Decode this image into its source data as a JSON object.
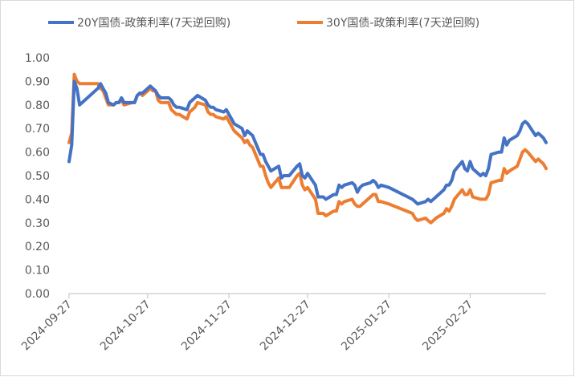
{
  "chart_data": {
    "type": "line",
    "title": "",
    "xlabel": "",
    "ylabel": "",
    "ylim": [
      0,
      1.0
    ],
    "yticks": [
      "0.00",
      "0.10",
      "0.20",
      "0.30",
      "0.40",
      "0.50",
      "0.60",
      "0.70",
      "0.80",
      "0.90",
      "1.00"
    ],
    "xticks": [
      "2024-09-27",
      "2024-10-27",
      "2024-11-27",
      "2024-12-27",
      "2025-01-27",
      "2025-02-27"
    ],
    "grid": false,
    "legend_position": "top",
    "series": [
      {
        "name": "20Y国债-政策利率(7天逆回购)",
        "color": "#4472C4",
        "points": [
          [
            "2024-09-27",
            0.56
          ],
          [
            "2024-09-28",
            0.63
          ],
          [
            "2024-09-29",
            0.9
          ],
          [
            "2024-09-30",
            0.87
          ],
          [
            "2024-10-01",
            0.8
          ],
          [
            "2024-10-08",
            0.87
          ],
          [
            "2024-10-09",
            0.89
          ],
          [
            "2024-10-10",
            0.87
          ],
          [
            "2024-10-11",
            0.85
          ],
          [
            "2024-10-12",
            0.81
          ],
          [
            "2024-10-14",
            0.8
          ],
          [
            "2024-10-15",
            0.81
          ],
          [
            "2024-10-16",
            0.81
          ],
          [
            "2024-10-17",
            0.83
          ],
          [
            "2024-10-18",
            0.81
          ],
          [
            "2024-10-21",
            0.81
          ],
          [
            "2024-10-22",
            0.81
          ],
          [
            "2024-10-23",
            0.84
          ],
          [
            "2024-10-24",
            0.85
          ],
          [
            "2024-10-25",
            0.85
          ],
          [
            "2024-10-28",
            0.88
          ],
          [
            "2024-10-29",
            0.87
          ],
          [
            "2024-10-30",
            0.86
          ],
          [
            "2024-10-31",
            0.84
          ],
          [
            "2024-11-01",
            0.83
          ],
          [
            "2024-11-04",
            0.83
          ],
          [
            "2024-11-05",
            0.82
          ],
          [
            "2024-11-06",
            0.8
          ],
          [
            "2024-11-07",
            0.79
          ],
          [
            "2024-11-08",
            0.79
          ],
          [
            "2024-11-11",
            0.78
          ],
          [
            "2024-11-12",
            0.81
          ],
          [
            "2024-11-13",
            0.82
          ],
          [
            "2024-11-14",
            0.83
          ],
          [
            "2024-11-15",
            0.84
          ],
          [
            "2024-11-18",
            0.82
          ],
          [
            "2024-11-19",
            0.8
          ],
          [
            "2024-11-20",
            0.79
          ],
          [
            "2024-11-21",
            0.79
          ],
          [
            "2024-11-22",
            0.78
          ],
          [
            "2024-11-25",
            0.77
          ],
          [
            "2024-11-26",
            0.78
          ],
          [
            "2024-11-27",
            0.76
          ],
          [
            "2024-11-28",
            0.74
          ],
          [
            "2024-11-29",
            0.72
          ],
          [
            "2024-12-02",
            0.7
          ],
          [
            "2024-12-03",
            0.67
          ],
          [
            "2024-12-04",
            0.69
          ],
          [
            "2024-12-05",
            0.68
          ],
          [
            "2024-12-06",
            0.67
          ],
          [
            "2024-12-09",
            0.59
          ],
          [
            "2024-12-10",
            0.59
          ],
          [
            "2024-12-11",
            0.56
          ],
          [
            "2024-12-12",
            0.54
          ],
          [
            "2024-12-13",
            0.52
          ],
          [
            "2024-12-16",
            0.54
          ],
          [
            "2024-12-17",
            0.49
          ],
          [
            "2024-12-18",
            0.5
          ],
          [
            "2024-12-19",
            0.5
          ],
          [
            "2024-12-20",
            0.5
          ],
          [
            "2024-12-23",
            0.54
          ],
          [
            "2024-12-24",
            0.55
          ],
          [
            "2024-12-25",
            0.5
          ],
          [
            "2024-12-26",
            0.49
          ],
          [
            "2024-12-27",
            0.51
          ],
          [
            "2024-12-30",
            0.46
          ],
          [
            "2024-12-31",
            0.41
          ],
          [
            "2025-01-02",
            0.41
          ],
          [
            "2025-01-03",
            0.4
          ],
          [
            "2025-01-06",
            0.42
          ],
          [
            "2025-01-07",
            0.42
          ],
          [
            "2025-01-08",
            0.46
          ],
          [
            "2025-01-09",
            0.45
          ],
          [
            "2025-01-10",
            0.46
          ],
          [
            "2025-01-13",
            0.47
          ],
          [
            "2025-01-14",
            0.46
          ],
          [
            "2025-01-15",
            0.43
          ],
          [
            "2025-01-16",
            0.45
          ],
          [
            "2025-01-17",
            0.46
          ],
          [
            "2025-01-20",
            0.47
          ],
          [
            "2025-01-21",
            0.48
          ],
          [
            "2025-01-22",
            0.47
          ],
          [
            "2025-01-23",
            0.45
          ],
          [
            "2025-01-24",
            0.46
          ],
          [
            "2025-01-27",
            0.45
          ],
          [
            "2025-02-05",
            0.4
          ],
          [
            "2025-02-06",
            0.39
          ],
          [
            "2025-02-07",
            0.38
          ],
          [
            "2025-02-10",
            0.39
          ],
          [
            "2025-02-11",
            0.4
          ],
          [
            "2025-02-12",
            0.39
          ],
          [
            "2025-02-13",
            0.4
          ],
          [
            "2025-02-14",
            0.41
          ],
          [
            "2025-02-17",
            0.44
          ],
          [
            "2025-02-18",
            0.46
          ],
          [
            "2025-02-19",
            0.46
          ],
          [
            "2025-02-20",
            0.48
          ],
          [
            "2025-02-21",
            0.52
          ],
          [
            "2025-02-24",
            0.56
          ],
          [
            "2025-02-25",
            0.53
          ],
          [
            "2025-02-26",
            0.52
          ],
          [
            "2025-02-27",
            0.56
          ],
          [
            "2025-02-28",
            0.53
          ],
          [
            "2025-03-03",
            0.5
          ],
          [
            "2025-03-04",
            0.51
          ],
          [
            "2025-03-05",
            0.5
          ],
          [
            "2025-03-06",
            0.53
          ],
          [
            "2025-03-07",
            0.59
          ],
          [
            "2025-03-10",
            0.6
          ],
          [
            "2025-03-11",
            0.6
          ],
          [
            "2025-03-12",
            0.66
          ],
          [
            "2025-03-13",
            0.63
          ],
          [
            "2025-03-14",
            0.65
          ],
          [
            "2025-03-17",
            0.67
          ],
          [
            "2025-03-18",
            0.69
          ],
          [
            "2025-03-19",
            0.72
          ],
          [
            "2025-03-20",
            0.73
          ],
          [
            "2025-03-21",
            0.72
          ],
          [
            "2025-03-24",
            0.67
          ],
          [
            "2025-03-25",
            0.68
          ],
          [
            "2025-03-26",
            0.67
          ],
          [
            "2025-03-27",
            0.66
          ],
          [
            "2025-03-28",
            0.64
          ]
        ]
      },
      {
        "name": "30Y国债-政策利率(7天逆回购)",
        "color": "#ED7D31",
        "points": [
          [
            "2024-09-27",
            0.64
          ],
          [
            "2024-09-28",
            0.68
          ],
          [
            "2024-09-29",
            0.93
          ],
          [
            "2024-09-30",
            0.9
          ],
          [
            "2024-10-01",
            0.89
          ],
          [
            "2024-10-08",
            0.89
          ],
          [
            "2024-10-09",
            0.87
          ],
          [
            "2024-10-10",
            0.86
          ],
          [
            "2024-10-11",
            0.83
          ],
          [
            "2024-10-12",
            0.8
          ],
          [
            "2024-10-14",
            0.8
          ],
          [
            "2024-10-15",
            0.81
          ],
          [
            "2024-10-16",
            0.81
          ],
          [
            "2024-10-17",
            0.82
          ],
          [
            "2024-10-18",
            0.8
          ],
          [
            "2024-10-21",
            0.81
          ],
          [
            "2024-10-22",
            0.81
          ],
          [
            "2024-10-23",
            0.84
          ],
          [
            "2024-10-24",
            0.85
          ],
          [
            "2024-10-25",
            0.84
          ],
          [
            "2024-10-28",
            0.87
          ],
          [
            "2024-10-29",
            0.86
          ],
          [
            "2024-10-30",
            0.86
          ],
          [
            "2024-10-31",
            0.82
          ],
          [
            "2024-11-01",
            0.81
          ],
          [
            "2024-11-04",
            0.81
          ],
          [
            "2024-11-05",
            0.78
          ],
          [
            "2024-11-06",
            0.77
          ],
          [
            "2024-11-07",
            0.76
          ],
          [
            "2024-11-08",
            0.76
          ],
          [
            "2024-11-11",
            0.74
          ],
          [
            "2024-11-12",
            0.77
          ],
          [
            "2024-11-13",
            0.78
          ],
          [
            "2024-11-14",
            0.79
          ],
          [
            "2024-11-15",
            0.81
          ],
          [
            "2024-11-18",
            0.8
          ],
          [
            "2024-11-19",
            0.77
          ],
          [
            "2024-11-20",
            0.76
          ],
          [
            "2024-11-21",
            0.76
          ],
          [
            "2024-11-22",
            0.75
          ],
          [
            "2024-11-25",
            0.74
          ],
          [
            "2024-11-26",
            0.75
          ],
          [
            "2024-11-27",
            0.73
          ],
          [
            "2024-11-28",
            0.71
          ],
          [
            "2024-11-29",
            0.69
          ],
          [
            "2024-12-02",
            0.66
          ],
          [
            "2024-12-03",
            0.64
          ],
          [
            "2024-12-04",
            0.65
          ],
          [
            "2024-12-05",
            0.63
          ],
          [
            "2024-12-06",
            0.62
          ],
          [
            "2024-12-09",
            0.54
          ],
          [
            "2024-12-10",
            0.54
          ],
          [
            "2024-12-11",
            0.5
          ],
          [
            "2024-12-12",
            0.47
          ],
          [
            "2024-12-13",
            0.45
          ],
          [
            "2024-12-16",
            0.49
          ],
          [
            "2024-12-17",
            0.45
          ],
          [
            "2024-12-18",
            0.45
          ],
          [
            "2024-12-19",
            0.45
          ],
          [
            "2024-12-20",
            0.45
          ],
          [
            "2024-12-23",
            0.5
          ],
          [
            "2024-12-24",
            0.51
          ],
          [
            "2024-12-25",
            0.46
          ],
          [
            "2024-12-26",
            0.44
          ],
          [
            "2024-12-27",
            0.45
          ],
          [
            "2024-12-30",
            0.4
          ],
          [
            "2024-12-31",
            0.34
          ],
          [
            "2025-01-02",
            0.34
          ],
          [
            "2025-01-03",
            0.33
          ],
          [
            "2025-01-06",
            0.35
          ],
          [
            "2025-01-07",
            0.35
          ],
          [
            "2025-01-08",
            0.39
          ],
          [
            "2025-01-09",
            0.38
          ],
          [
            "2025-01-10",
            0.39
          ],
          [
            "2025-01-13",
            0.4
          ],
          [
            "2025-01-14",
            0.38
          ],
          [
            "2025-01-15",
            0.37
          ],
          [
            "2025-01-16",
            0.37
          ],
          [
            "2025-01-17",
            0.38
          ],
          [
            "2025-01-20",
            0.41
          ],
          [
            "2025-01-21",
            0.42
          ],
          [
            "2025-01-22",
            0.42
          ],
          [
            "2025-01-23",
            0.39
          ],
          [
            "2025-01-24",
            0.39
          ],
          [
            "2025-01-27",
            0.38
          ],
          [
            "2025-02-05",
            0.34
          ],
          [
            "2025-02-06",
            0.32
          ],
          [
            "2025-02-07",
            0.31
          ],
          [
            "2025-02-10",
            0.32
          ],
          [
            "2025-02-11",
            0.31
          ],
          [
            "2025-02-12",
            0.3
          ],
          [
            "2025-02-13",
            0.31
          ],
          [
            "2025-02-14",
            0.32
          ],
          [
            "2025-02-17",
            0.34
          ],
          [
            "2025-02-18",
            0.36
          ],
          [
            "2025-02-19",
            0.35
          ],
          [
            "2025-02-20",
            0.37
          ],
          [
            "2025-02-21",
            0.4
          ],
          [
            "2025-02-24",
            0.44
          ],
          [
            "2025-02-25",
            0.42
          ],
          [
            "2025-02-26",
            0.42
          ],
          [
            "2025-02-27",
            0.44
          ],
          [
            "2025-02-28",
            0.41
          ],
          [
            "2025-03-03",
            0.4
          ],
          [
            "2025-03-04",
            0.4
          ],
          [
            "2025-03-05",
            0.4
          ],
          [
            "2025-03-06",
            0.42
          ],
          [
            "2025-03-07",
            0.47
          ],
          [
            "2025-03-10",
            0.48
          ],
          [
            "2025-03-11",
            0.48
          ],
          [
            "2025-03-12",
            0.53
          ],
          [
            "2025-03-13",
            0.51
          ],
          [
            "2025-03-14",
            0.52
          ],
          [
            "2025-03-17",
            0.54
          ],
          [
            "2025-03-18",
            0.57
          ],
          [
            "2025-03-19",
            0.6
          ],
          [
            "2025-03-20",
            0.61
          ],
          [
            "2025-03-21",
            0.6
          ],
          [
            "2025-03-24",
            0.56
          ],
          [
            "2025-03-25",
            0.57
          ],
          [
            "2025-03-26",
            0.56
          ],
          [
            "2025-03-27",
            0.55
          ],
          [
            "2025-03-28",
            0.53
          ]
        ]
      }
    ]
  }
}
